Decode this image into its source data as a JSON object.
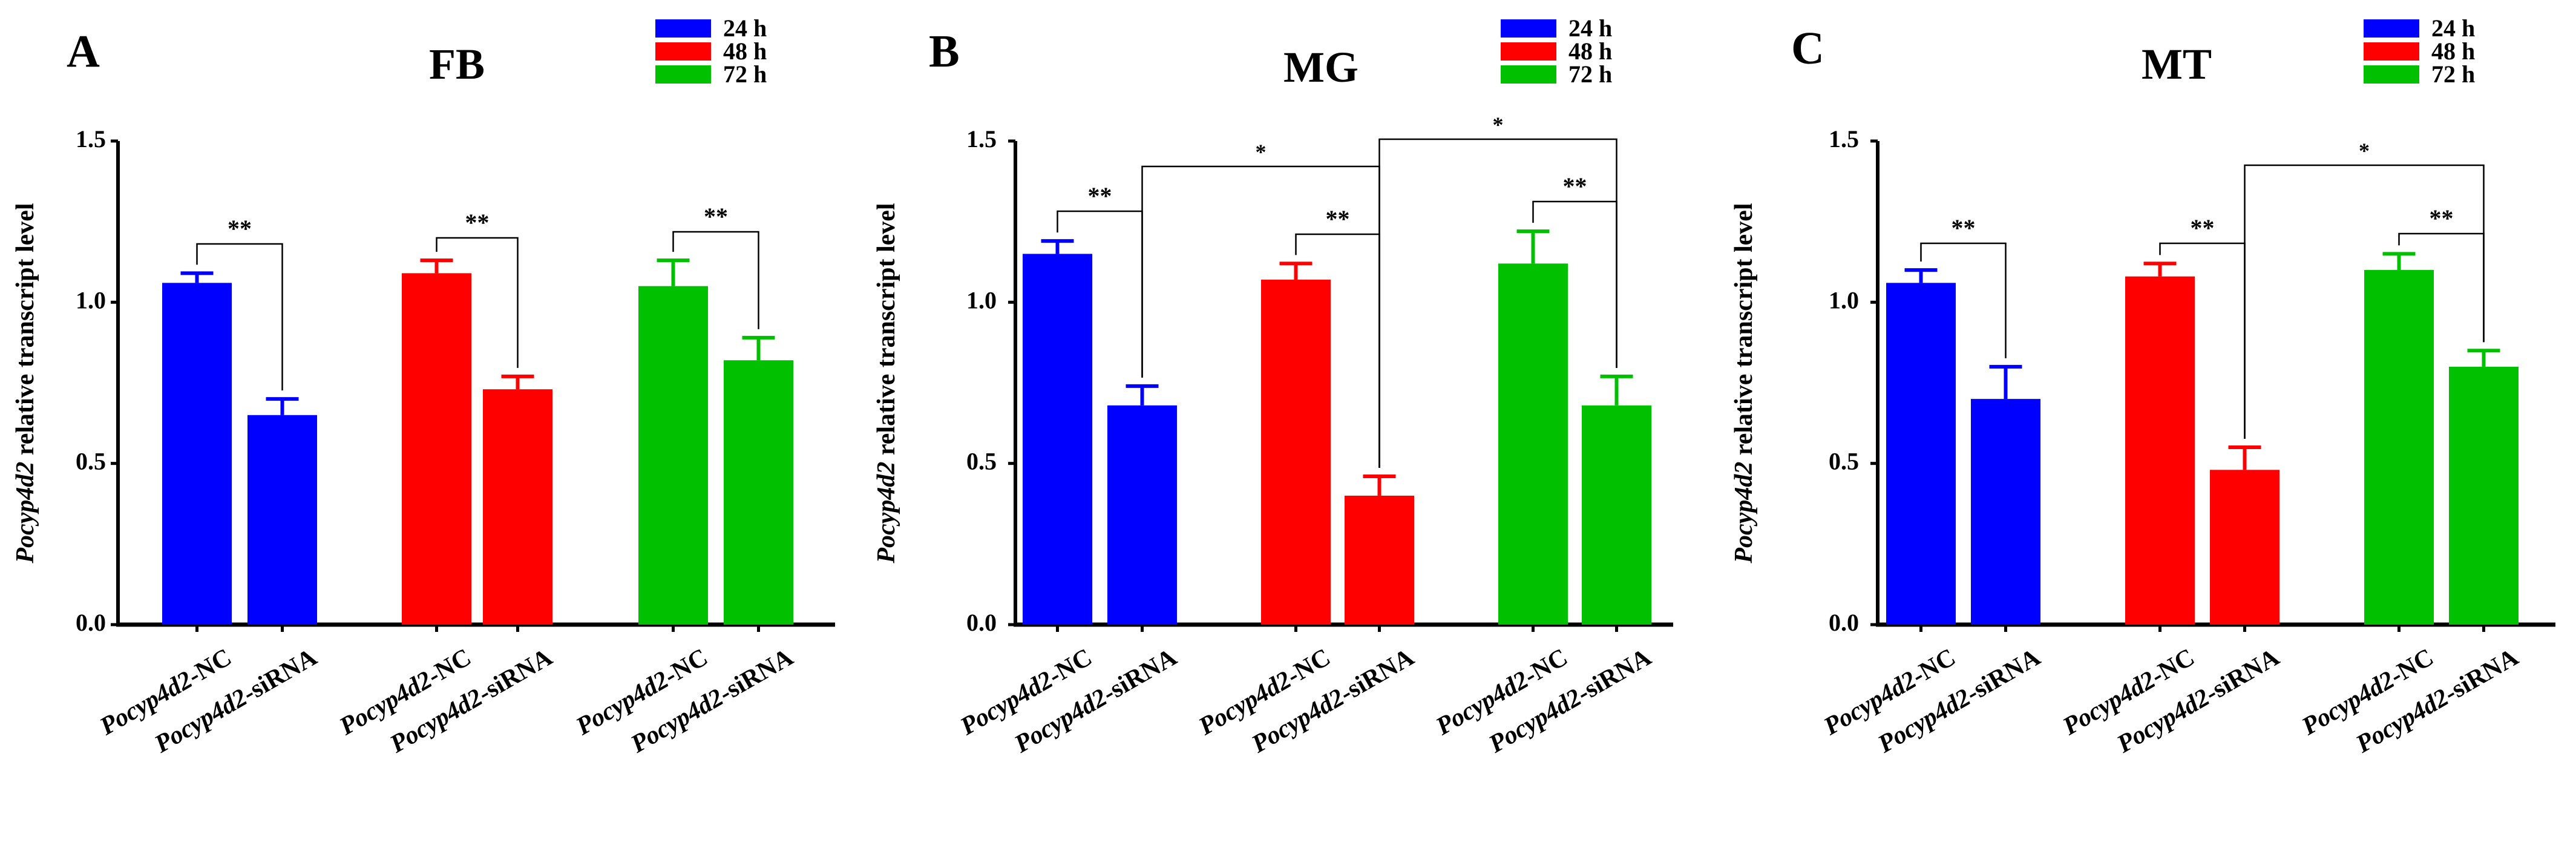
{
  "colors": {
    "h24": "#0000FF",
    "h48": "#FF0000",
    "h72": "#00C000",
    "axis": "#000000"
  },
  "legend": [
    "24 h",
    "48 h",
    "72 h"
  ],
  "ylabel_italic": "Pocyp4d2",
  "ylabel_rest": " relative transcript level",
  "xlabel_italic": "Pocyp4d2",
  "xlabel_nc": "-NC",
  "xlabel_si": "-siRNA",
  "chart_data": [
    {
      "panel": "A",
      "title": "FB",
      "type": "bar",
      "ylim": [
        0,
        1.5
      ],
      "yticks": [
        "0.0",
        "0.5",
        "1.0",
        "1.5"
      ],
      "categories": [
        "Pocyp4d2-NC",
        "Pocyp4d2-siRNA"
      ],
      "series": [
        {
          "name": "24 h",
          "values": [
            1.06,
            0.65
          ],
          "errors": [
            0.03,
            0.05
          ]
        },
        {
          "name": "48 h",
          "values": [
            1.09,
            0.73
          ],
          "errors": [
            0.04,
            0.04
          ]
        },
        {
          "name": "72 h",
          "values": [
            1.05,
            0.82
          ],
          "errors": [
            0.08,
            0.07
          ]
        }
      ],
      "annotations": [
        {
          "label": "**",
          "from": "24 h Pocyp4d2-NC",
          "to": "24 h Pocyp4d2-siRNA"
        },
        {
          "label": "**",
          "from": "48 h Pocyp4d2-NC",
          "to": "48 h Pocyp4d2-siRNA"
        },
        {
          "label": "**",
          "from": "72 h Pocyp4d2-NC",
          "to": "72 h Pocyp4d2-siRNA"
        }
      ]
    },
    {
      "panel": "B",
      "title": "MG",
      "type": "bar",
      "ylim": [
        0,
        1.5
      ],
      "yticks": [
        "0.0",
        "0.5",
        "1.0",
        "1.5"
      ],
      "categories": [
        "Pocyp4d2-NC",
        "Pocyp4d2-siRNA"
      ],
      "series": [
        {
          "name": "24 h",
          "values": [
            1.15,
            0.68
          ],
          "errors": [
            0.04,
            0.06
          ]
        },
        {
          "name": "48 h",
          "values": [
            1.07,
            0.4
          ],
          "errors": [
            0.05,
            0.06
          ]
        },
        {
          "name": "72 h",
          "values": [
            1.12,
            0.68
          ],
          "errors": [
            0.1,
            0.09
          ]
        }
      ],
      "annotations": [
        {
          "label": "**",
          "from": "24 h Pocyp4d2-NC",
          "to": "24 h Pocyp4d2-siRNA"
        },
        {
          "label": "**",
          "from": "48 h Pocyp4d2-NC",
          "to": "48 h Pocyp4d2-siRNA"
        },
        {
          "label": "**",
          "from": "72 h Pocyp4d2-NC",
          "to": "72 h Pocyp4d2-siRNA"
        },
        {
          "label": "*",
          "from": "24 h Pocyp4d2-siRNA",
          "to": "48 h Pocyp4d2-siRNA"
        },
        {
          "label": "*",
          "from": "48 h Pocyp4d2-siRNA",
          "to": "72 h Pocyp4d2-siRNA"
        }
      ]
    },
    {
      "panel": "C",
      "title": "MT",
      "type": "bar",
      "ylim": [
        0,
        1.5
      ],
      "yticks": [
        "0.0",
        "0.5",
        "1.0",
        "1.5"
      ],
      "categories": [
        "Pocyp4d2-NC",
        "Pocyp4d2-siRNA"
      ],
      "series": [
        {
          "name": "24 h",
          "values": [
            1.06,
            0.7
          ],
          "errors": [
            0.04,
            0.1
          ]
        },
        {
          "name": "48 h",
          "values": [
            1.08,
            0.48
          ],
          "errors": [
            0.04,
            0.07
          ]
        },
        {
          "name": "72 h",
          "values": [
            1.1,
            0.8
          ],
          "errors": [
            0.05,
            0.05
          ]
        }
      ],
      "annotations": [
        {
          "label": "**",
          "from": "24 h Pocyp4d2-NC",
          "to": "24 h Pocyp4d2-siRNA"
        },
        {
          "label": "**",
          "from": "48 h Pocyp4d2-NC",
          "to": "48 h Pocyp4d2-siRNA"
        },
        {
          "label": "**",
          "from": "72 h Pocyp4d2-NC",
          "to": "72 h Pocyp4d2-siRNA"
        },
        {
          "label": "*",
          "from": "48 h Pocyp4d2-siRNA",
          "to": "72 h Pocyp4d2-siRNA"
        }
      ]
    }
  ]
}
